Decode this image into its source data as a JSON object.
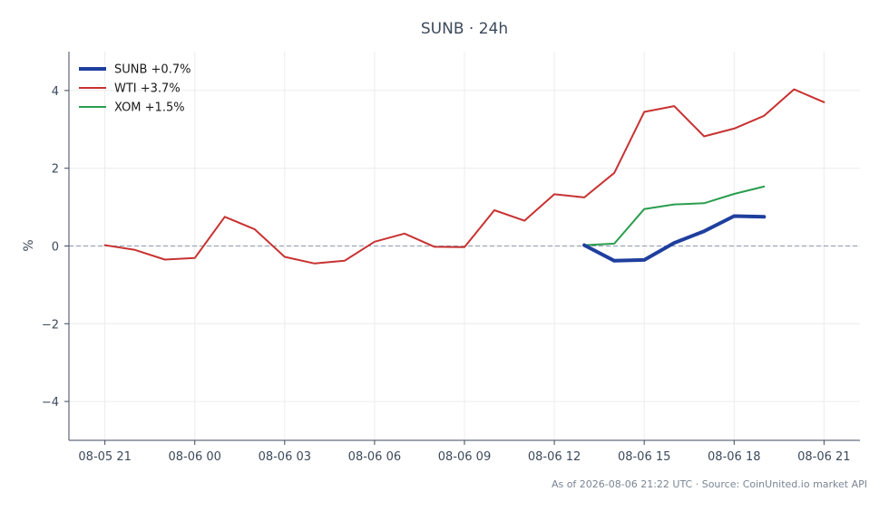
{
  "chart_data": {
    "type": "line",
    "title": "SUNB · 24h",
    "xlabel": "",
    "ylabel": "%",
    "x_ticks": [
      "08-05 21",
      "08-06 00",
      "08-06 03",
      "08-06 06",
      "08-06 09",
      "08-06 12",
      "08-06 15",
      "08-06 18",
      "08-06 21"
    ],
    "x_tick_hours": [
      0,
      3,
      6,
      9,
      12,
      15,
      18,
      21,
      24
    ],
    "xlim": [
      -1.2,
      25.2
    ],
    "y_ticks": [
      4,
      2,
      0,
      -2,
      -4
    ],
    "y_tick_labels": [
      "4",
      "2",
      "0",
      "−2",
      "−4"
    ],
    "ylim": [
      -5,
      5
    ],
    "grid": true,
    "zero_line": true,
    "legend_position": "top-left",
    "series": [
      {
        "name": "SUNB +0.7%",
        "color": "#1f3f9e",
        "width": 4,
        "x": [
          16,
          17,
          18,
          19,
          20,
          21,
          22
        ],
        "values": [
          0.02,
          -0.38,
          -0.36,
          0.08,
          0.38,
          0.77,
          0.75
        ]
      },
      {
        "name": "WTI +3.7%",
        "color": "#c83232",
        "width": 2,
        "x": [
          0,
          1,
          2,
          3,
          4,
          5,
          6,
          7,
          8,
          9,
          10,
          11,
          12,
          13,
          14,
          15,
          16,
          17,
          18,
          19,
          20,
          21,
          22,
          23,
          24
        ],
        "values": [
          0.02,
          -0.1,
          -0.35,
          -0.31,
          0.75,
          0.43,
          -0.28,
          -0.45,
          -0.38,
          0.11,
          0.32,
          -0.02,
          -0.03,
          0.92,
          0.65,
          1.33,
          1.25,
          1.88,
          3.45,
          3.6,
          2.82,
          3.02,
          3.35,
          4.03,
          3.7
        ]
      },
      {
        "name": "XOM +1.5%",
        "color": "#2a9d4e",
        "width": 2,
        "x": [
          16,
          17,
          18,
          19,
          20,
          21,
          22
        ],
        "values": [
          0.02,
          0.06,
          0.95,
          1.07,
          1.1,
          1.34,
          1.53
        ]
      }
    ]
  },
  "footer": "As of 2026-08-06 21:22 UTC · Source: CoinUnited.io market API"
}
